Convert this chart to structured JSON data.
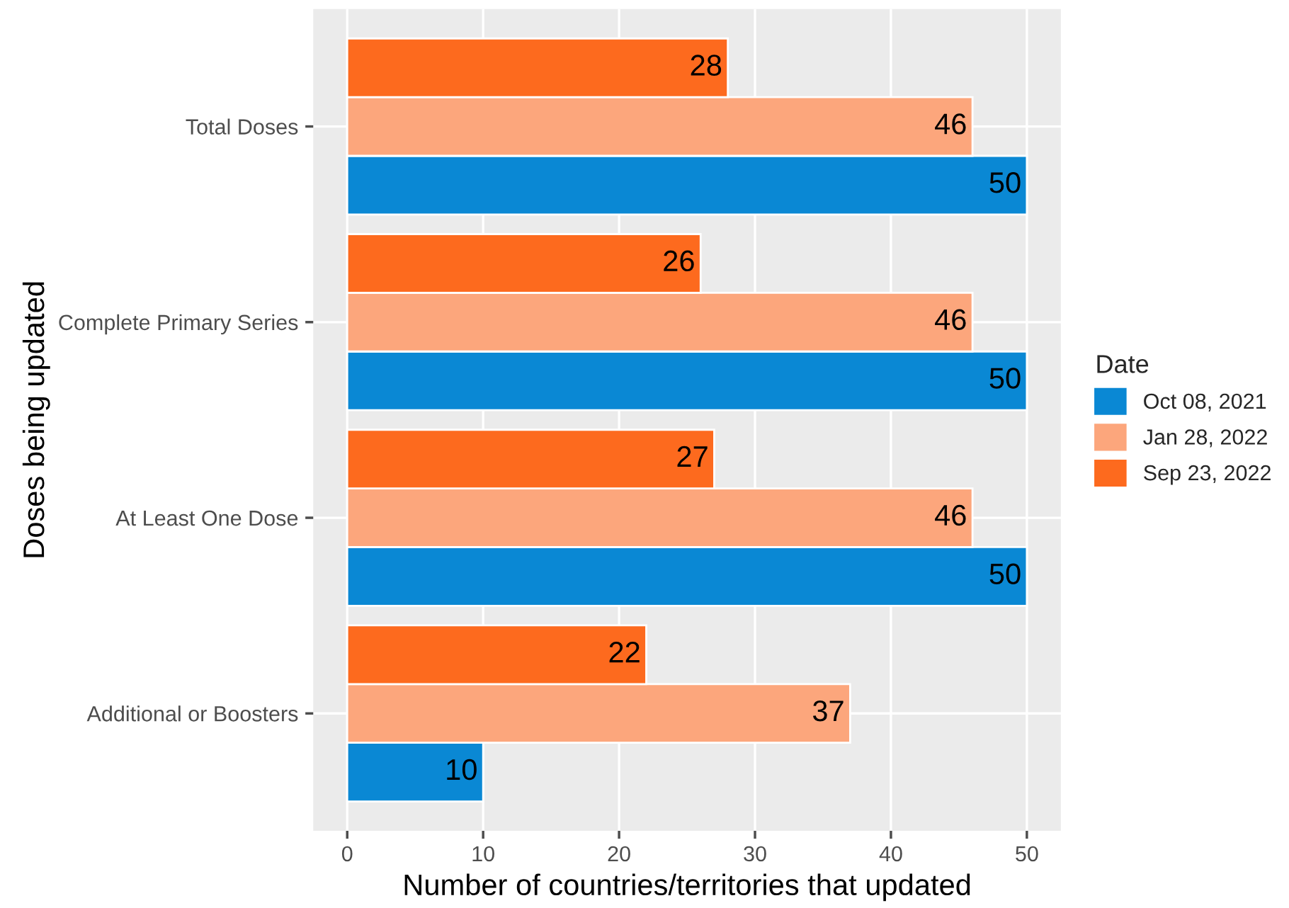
{
  "chart_data": {
    "type": "bar",
    "orientation": "horizontal",
    "xlabel": "Number of countries/territories that updated",
    "ylabel": "Doses being updated",
    "legend_title": "Date",
    "categories": [
      "Total Doses",
      "Complete Primary Series",
      "At Least One Dose",
      "Additional or Boosters"
    ],
    "series": [
      {
        "name": "Oct 08, 2021",
        "color": "#0a88d4",
        "values": [
          50,
          50,
          50,
          10
        ]
      },
      {
        "name": "Jan 28, 2022",
        "color": "#fca67c",
        "values": [
          46,
          46,
          46,
          37
        ]
      },
      {
        "name": "Sep 23, 2022",
        "color": "#fd6a1e",
        "values": [
          28,
          26,
          27,
          22
        ]
      }
    ],
    "xlim": [
      -2.5,
      52.5
    ],
    "xticks": [
      0,
      10,
      20,
      30,
      40,
      50
    ],
    "grid": true,
    "legend": "right",
    "data_labels": true
  }
}
